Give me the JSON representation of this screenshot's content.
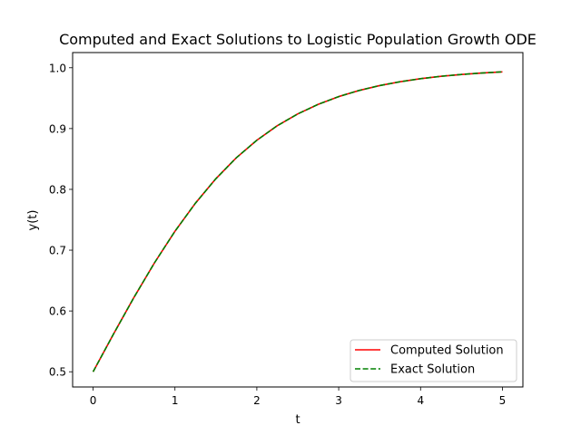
{
  "chart_data": {
    "type": "line",
    "title": "Computed and Exact Solutions to Logistic Population Growth ODE",
    "xlabel": "t",
    "ylabel": "y(t)",
    "xlim": [
      -0.25,
      5.25
    ],
    "ylim": [
      0.475,
      1.025
    ],
    "xticks": [
      0,
      1,
      2,
      3,
      4,
      5
    ],
    "xtick_labels": [
      "0",
      "1",
      "2",
      "3",
      "4",
      "5"
    ],
    "yticks": [
      0.5,
      0.6,
      0.7,
      0.8,
      0.9,
      1.0
    ],
    "ytick_labels": [
      "0.5",
      "0.6",
      "0.7",
      "0.8",
      "0.9",
      "1.0"
    ],
    "grid": false,
    "legend_position": "lower-right",
    "x": [
      0,
      0.25,
      0.5,
      0.75,
      1.0,
      1.25,
      1.5,
      1.75,
      2.0,
      2.25,
      2.5,
      2.75,
      3.0,
      3.25,
      3.5,
      3.75,
      4.0,
      4.25,
      4.5,
      4.75,
      5.0
    ],
    "series": [
      {
        "name": "Computed Solution",
        "color": "#ff0000",
        "style": "solid",
        "values": [
          0.5,
          0.5622,
          0.6225,
          0.6792,
          0.7311,
          0.7773,
          0.8176,
          0.852,
          0.8808,
          0.9047,
          0.9241,
          0.9399,
          0.9526,
          0.9627,
          0.9707,
          0.977,
          0.982,
          0.986,
          0.989,
          0.9914,
          0.9933
        ]
      },
      {
        "name": "Exact Solution",
        "color": "#008000",
        "style": "dashed",
        "values": [
          0.5,
          0.5622,
          0.6225,
          0.6792,
          0.7311,
          0.7773,
          0.8176,
          0.852,
          0.8808,
          0.9047,
          0.9241,
          0.9399,
          0.9526,
          0.9627,
          0.9707,
          0.977,
          0.982,
          0.986,
          0.989,
          0.9914,
          0.9933
        ]
      }
    ]
  }
}
